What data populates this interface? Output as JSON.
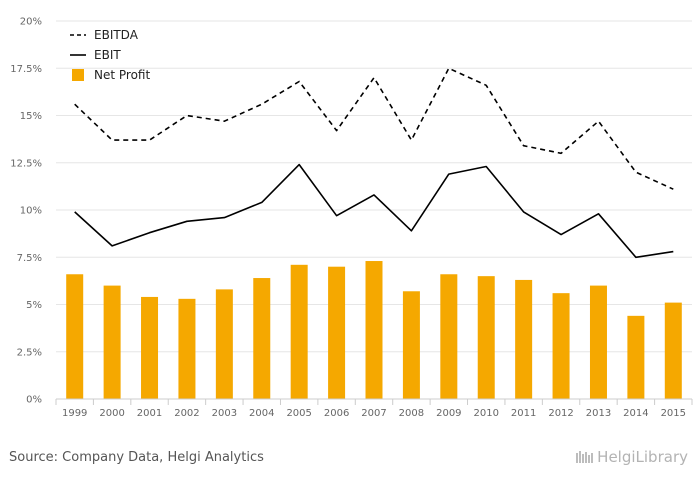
{
  "chart_data": {
    "type": "bar",
    "categories": [
      "1999",
      "2000",
      "2001",
      "2002",
      "2003",
      "2004",
      "2005",
      "2006",
      "2007",
      "2008",
      "2009",
      "2010",
      "2011",
      "2012",
      "2013",
      "2014",
      "2015"
    ],
    "series": [
      {
        "name": "EBITDA",
        "kind": "line",
        "style": "dashed",
        "color": "#000000",
        "values": [
          15.6,
          13.7,
          13.7,
          15.0,
          14.7,
          15.6,
          16.8,
          14.2,
          17.0,
          13.7,
          17.5,
          16.6,
          13.4,
          13.0,
          14.7,
          12.0,
          11.1
        ]
      },
      {
        "name": "EBIT",
        "kind": "line",
        "style": "solid",
        "color": "#000000",
        "values": [
          9.9,
          8.1,
          8.8,
          9.4,
          9.6,
          10.4,
          12.4,
          9.7,
          10.8,
          8.9,
          11.9,
          12.3,
          9.9,
          8.7,
          9.8,
          7.5,
          7.8
        ]
      },
      {
        "name": "Net Profit",
        "kind": "bar",
        "color": "#F5A800",
        "values": [
          6.6,
          6.0,
          5.4,
          5.3,
          5.8,
          6.4,
          7.1,
          7.0,
          7.3,
          5.7,
          6.6,
          6.5,
          6.3,
          5.6,
          6.0,
          4.4,
          5.1
        ]
      }
    ],
    "yticks": [
      "0%",
      "2.5%",
      "5%",
      "7.5%",
      "10%",
      "12.5%",
      "15%",
      "17.5%",
      "20%"
    ],
    "ylim": [
      0,
      20
    ],
    "grid": true,
    "legend": "top-left"
  },
  "footer": {
    "source": "Source: Company Data, Helgi Analytics",
    "brand": "HelgiLibrary"
  },
  "colors": {
    "grid": "#e6e6e6",
    "axis": "#cccccc",
    "bar": "#F5A800",
    "line": "#000000"
  }
}
